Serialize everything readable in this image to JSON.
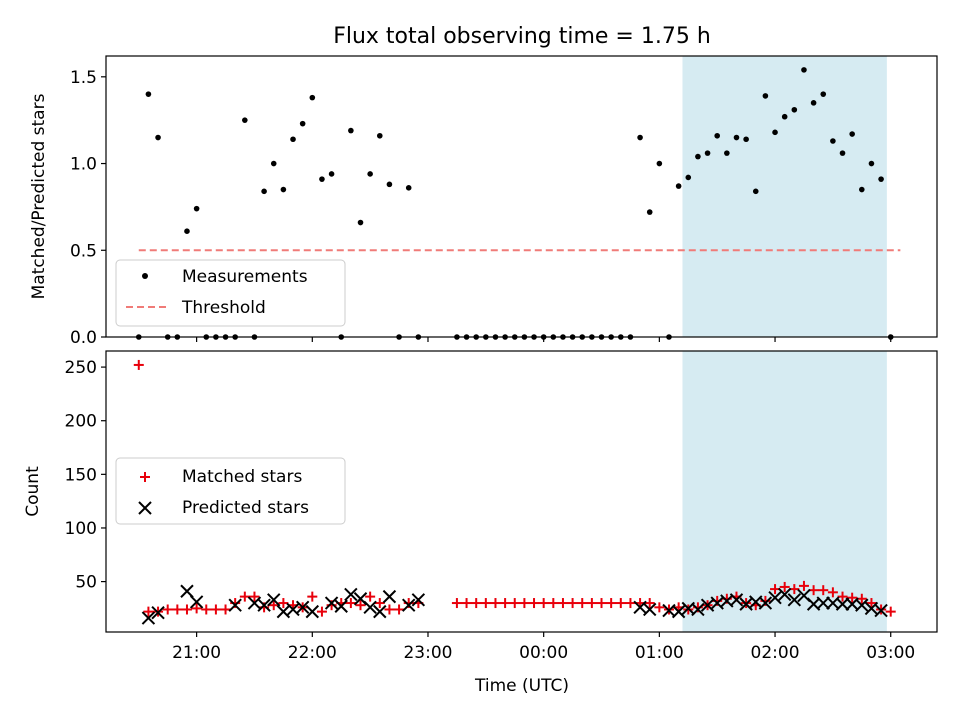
{
  "title": "Flux total observing time = 1.75 h",
  "colors": {
    "measurement": "#000000",
    "threshold": "#f07b78",
    "matched": "#e8000b",
    "predicted": "#000000",
    "highlight": "#add8e6"
  },
  "chart_data": [
    {
      "type": "scatter",
      "panel": "top",
      "ylabel": "Matched/Predicted stars",
      "xlabel": "",
      "ylim": [
        0,
        1.62
      ],
      "yticks": [
        "0.0",
        "0.5",
        "1.0",
        "1.5"
      ],
      "ytick_values": [
        0,
        0.5,
        1.0,
        1.5
      ],
      "grid": false,
      "legend_position": "lower-left",
      "highlight_span": [
        "01:12",
        "02:58"
      ],
      "series": [
        {
          "name": "Measurements",
          "marker": "dot",
          "x": [
            "20:30",
            "20:35",
            "20:40",
            "20:45",
            "20:50",
            "20:55",
            "21:00",
            "21:05",
            "21:10",
            "21:15",
            "21:20",
            "21:25",
            "21:30",
            "21:35",
            "21:40",
            "21:45",
            "21:50",
            "21:55",
            "22:00",
            "22:05",
            "22:10",
            "22:15",
            "22:20",
            "22:25",
            "22:30",
            "22:35",
            "22:40",
            "22:45",
            "22:50",
            "22:55",
            "23:15",
            "23:20",
            "23:25",
            "23:30",
            "23:35",
            "23:40",
            "23:45",
            "23:50",
            "23:55",
            "00:00",
            "00:05",
            "00:10",
            "00:15",
            "00:20",
            "00:25",
            "00:30",
            "00:35",
            "00:40",
            "00:45",
            "00:50",
            "00:55",
            "01:00",
            "01:05",
            "01:10",
            "01:15",
            "01:20",
            "01:25",
            "01:30",
            "01:35",
            "01:40",
            "01:45",
            "01:50",
            "01:55",
            "02:00",
            "02:05",
            "02:10",
            "02:15",
            "02:20",
            "02:25",
            "02:30",
            "02:35",
            "02:40",
            "02:45",
            "02:50",
            "02:55",
            "03:00"
          ],
          "y": [
            0.0,
            1.4,
            1.15,
            0.0,
            0.0,
            0.61,
            0.74,
            0.0,
            0.0,
            0.0,
            0.0,
            1.25,
            0.0,
            0.84,
            1.0,
            0.85,
            1.14,
            1.23,
            1.38,
            0.91,
            0.94,
            0.0,
            1.19,
            0.66,
            0.94,
            1.16,
            0.88,
            0.0,
            0.86,
            0.0,
            0.0,
            0.0,
            0.0,
            0.0,
            0.0,
            0.0,
            0.0,
            0.0,
            0.0,
            0.0,
            0.0,
            0.0,
            0.0,
            0.0,
            0.0,
            0.0,
            0.0,
            0.0,
            0.0,
            1.15,
            0.72,
            1.0,
            0.0,
            0.87,
            0.92,
            1.04,
            1.06,
            1.16,
            1.06,
            1.15,
            1.14,
            0.84,
            1.39,
            1.18,
            1.27,
            1.31,
            1.54,
            1.35,
            1.4,
            1.13,
            1.06,
            1.17,
            0.85,
            1.0,
            0.91,
            0.0
          ]
        },
        {
          "name": "Threshold",
          "style": "dashed",
          "x": [
            "20:30",
            "03:05"
          ],
          "y": [
            0.5,
            0.5
          ]
        }
      ]
    },
    {
      "type": "scatter",
      "panel": "bottom",
      "ylabel": "Count",
      "xlabel": "Time (UTC)",
      "ylim": [
        3,
        265
      ],
      "yticks": [
        "50",
        "100",
        "150",
        "200",
        "250"
      ],
      "ytick_values": [
        50,
        100,
        150,
        200,
        250
      ],
      "xticks": [
        "21:00",
        "22:00",
        "23:00",
        "00:00",
        "01:00",
        "02:00",
        "03:00"
      ],
      "grid": false,
      "legend_position": "center-left",
      "highlight_span": [
        "01:12",
        "02:58"
      ],
      "series": [
        {
          "name": "Matched stars",
          "marker": "plus",
          "x": [
            "20:30",
            "20:35",
            "20:40",
            "20:45",
            "20:50",
            "20:55",
            "21:00",
            "21:05",
            "21:10",
            "21:15",
            "21:20",
            "21:25",
            "21:30",
            "21:35",
            "21:40",
            "21:45",
            "21:50",
            "21:55",
            "22:00",
            "22:05",
            "22:10",
            "22:15",
            "22:20",
            "22:25",
            "22:30",
            "22:35",
            "22:40",
            "22:45",
            "22:50",
            "22:55",
            "23:15",
            "23:20",
            "23:25",
            "23:30",
            "23:35",
            "23:40",
            "23:45",
            "23:50",
            "23:55",
            "00:00",
            "00:05",
            "00:10",
            "00:15",
            "00:20",
            "00:25",
            "00:30",
            "00:35",
            "00:40",
            "00:45",
            "00:50",
            "00:55",
            "01:00",
            "01:05",
            "01:10",
            "01:15",
            "01:20",
            "01:25",
            "01:30",
            "01:35",
            "01:40",
            "01:45",
            "01:50",
            "01:55",
            "02:00",
            "02:05",
            "02:10",
            "02:15",
            "02:20",
            "02:25",
            "02:30",
            "02:35",
            "02:40",
            "02:45",
            "02:50",
            "02:55",
            "03:00"
          ],
          "y": [
            252,
            22,
            22,
            24,
            24,
            24,
            25,
            24,
            24,
            24,
            30,
            36,
            36,
            26,
            28,
            30,
            28,
            26,
            36,
            22,
            28,
            30,
            30,
            28,
            36,
            30,
            24,
            24,
            30,
            30,
            30,
            30,
            30,
            30,
            30,
            30,
            30,
            30,
            30,
            30,
            30,
            30,
            30,
            30,
            30,
            30,
            30,
            30,
            30,
            30,
            30,
            26,
            24,
            26,
            24,
            26,
            28,
            32,
            34,
            36,
            30,
            28,
            32,
            43,
            45,
            43,
            46,
            42,
            42,
            40,
            36,
            35,
            34,
            30,
            24,
            22
          ]
        },
        {
          "name": "Predicted stars",
          "marker": "x",
          "x": [
            "20:35",
            "20:40",
            "20:55",
            "21:00",
            "21:20",
            "21:30",
            "21:35",
            "21:40",
            "21:45",
            "21:50",
            "21:55",
            "22:00",
            "22:10",
            "22:15",
            "22:20",
            "22:25",
            "22:30",
            "22:35",
            "22:40",
            "22:50",
            "22:55",
            "00:50",
            "00:55",
            "01:05",
            "01:10",
            "01:15",
            "01:20",
            "01:25",
            "01:30",
            "01:35",
            "01:40",
            "01:45",
            "01:50",
            "01:55",
            "02:00",
            "02:05",
            "02:10",
            "02:15",
            "02:20",
            "02:25",
            "02:30",
            "02:35",
            "02:40",
            "02:45",
            "02:50",
            "02:55"
          ],
          "y": [
            16,
            21,
            41,
            31,
            28,
            30,
            28,
            33,
            22,
            24,
            26,
            22,
            30,
            27,
            38,
            34,
            26,
            22,
            36,
            28,
            33,
            26,
            24,
            23,
            22,
            25,
            24,
            28,
            30,
            32,
            33,
            29,
            31,
            30,
            35,
            38,
            33,
            37,
            29,
            30,
            30,
            29,
            29,
            28,
            25,
            23
          ]
        }
      ]
    }
  ]
}
